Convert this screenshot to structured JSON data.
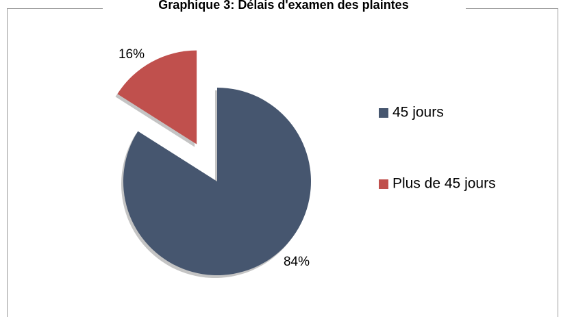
{
  "chart_data": {
    "type": "pie",
    "title": "Graphique 3: Délais d'examen des plaintes",
    "categories": [
      "45 jours",
      "Plus de 45 jours"
    ],
    "values": [
      84,
      16
    ],
    "value_labels": [
      "84%",
      "16%"
    ],
    "colors": [
      "#46566f",
      "#c0504d"
    ],
    "exploded": [
      false,
      true
    ],
    "legend": "right"
  }
}
